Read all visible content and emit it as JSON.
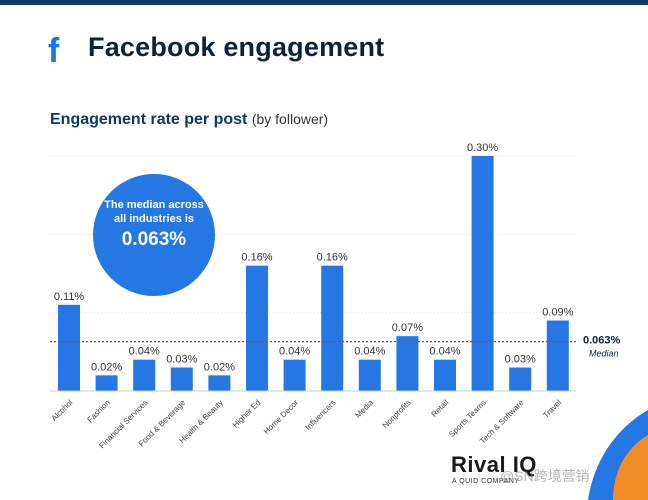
{
  "header": {
    "icon": "facebook-icon",
    "title": "Facebook engagement"
  },
  "subtitle": {
    "main": "Engagement rate per post",
    "qualifier": "(by follower)"
  },
  "callout": {
    "text": "The median across all industries is",
    "value": "0.063%"
  },
  "median_label": {
    "value": "0.063%",
    "name": "Median"
  },
  "branding": {
    "logo": "Rival IQ",
    "tagline": "A QUID COMPANY",
    "watermark": "@SN跨境营销"
  },
  "colors": {
    "bar": "#2577e3",
    "median_line": "#c0392b",
    "title": "#0c2340",
    "subtitle": "#0c3a66"
  },
  "chart_data": {
    "type": "bar",
    "title": "Engagement rate per post",
    "categories": [
      "Alcohol",
      "Fashion",
      "Financial Services",
      "Food & Beverage",
      "Health & Beauty",
      "Higher Ed",
      "Home Decor",
      "Influencers",
      "Media",
      "Nonprofits",
      "Retail",
      "Sports Teams",
      "Tech & Software",
      "Travel"
    ],
    "values": [
      0.11,
      0.02,
      0.04,
      0.03,
      0.02,
      0.16,
      0.04,
      0.16,
      0.04,
      0.07,
      0.04,
      0.3,
      0.03,
      0.09
    ],
    "data_labels": [
      "0.11%",
      "0.02%",
      "0.04%",
      "0.03%",
      "0.02%",
      "0.16%",
      "0.04%",
      "0.16%",
      "0.04%",
      "0.07%",
      "0.04%",
      "0.30%",
      "0.03%",
      "0.09%"
    ],
    "median": 0.063,
    "ylim": [
      0,
      0.3
    ],
    "grid": true,
    "unit": "%"
  }
}
